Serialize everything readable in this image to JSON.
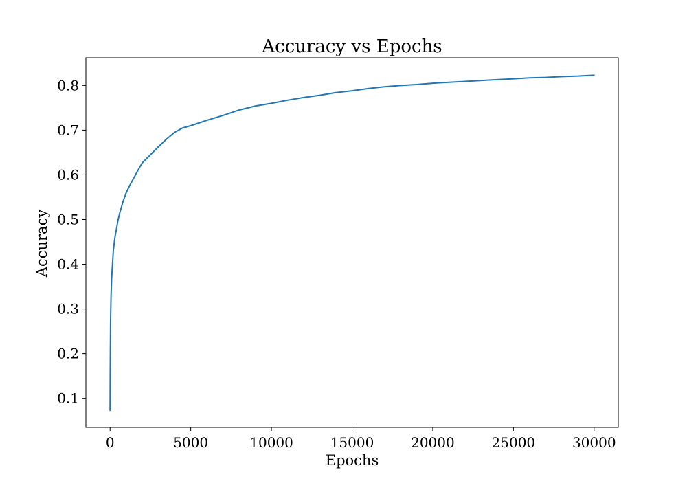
{
  "chart_data": {
    "type": "line",
    "title": "Accuracy vs Epochs",
    "xlabel": "Epochs",
    "ylabel": "Accuracy",
    "xlim": [
      -1500,
      31500
    ],
    "ylim": [
      0.035,
      0.862
    ],
    "xticks": [
      0,
      5000,
      10000,
      15000,
      20000,
      25000,
      30000
    ],
    "yticks": [
      0.1,
      0.2,
      0.3,
      0.4,
      0.5,
      0.6,
      0.7,
      0.8
    ],
    "grid": false,
    "colors": {
      "line": "#1f77b4",
      "axis": "#000000",
      "background": "#ffffff"
    },
    "series": [
      {
        "x": [
          0,
          10,
          30,
          60,
          100,
          150,
          200,
          300,
          400,
          500,
          600,
          800,
          1000,
          1200,
          1500,
          1800,
          2000,
          2500,
          3000,
          3500,
          4000,
          4500,
          5000,
          6000,
          7000,
          8000,
          9000,
          10000,
          11000,
          12000,
          13000,
          14000,
          15000,
          16000,
          17000,
          18000,
          19000,
          20000,
          21000,
          22000,
          23000,
          24000,
          25000,
          26000,
          27000,
          28000,
          29000,
          30000
        ],
        "y": [
          0.073,
          0.16,
          0.27,
          0.33,
          0.37,
          0.4,
          0.43,
          0.46,
          0.48,
          0.5,
          0.515,
          0.54,
          0.56,
          0.575,
          0.595,
          0.615,
          0.627,
          0.645,
          0.663,
          0.68,
          0.695,
          0.705,
          0.71,
          0.722,
          0.733,
          0.745,
          0.754,
          0.76,
          0.767,
          0.773,
          0.778,
          0.784,
          0.788,
          0.793,
          0.797,
          0.8,
          0.802,
          0.805,
          0.807,
          0.809,
          0.811,
          0.813,
          0.815,
          0.817,
          0.818,
          0.82,
          0.821,
          0.823
        ]
      }
    ]
  }
}
